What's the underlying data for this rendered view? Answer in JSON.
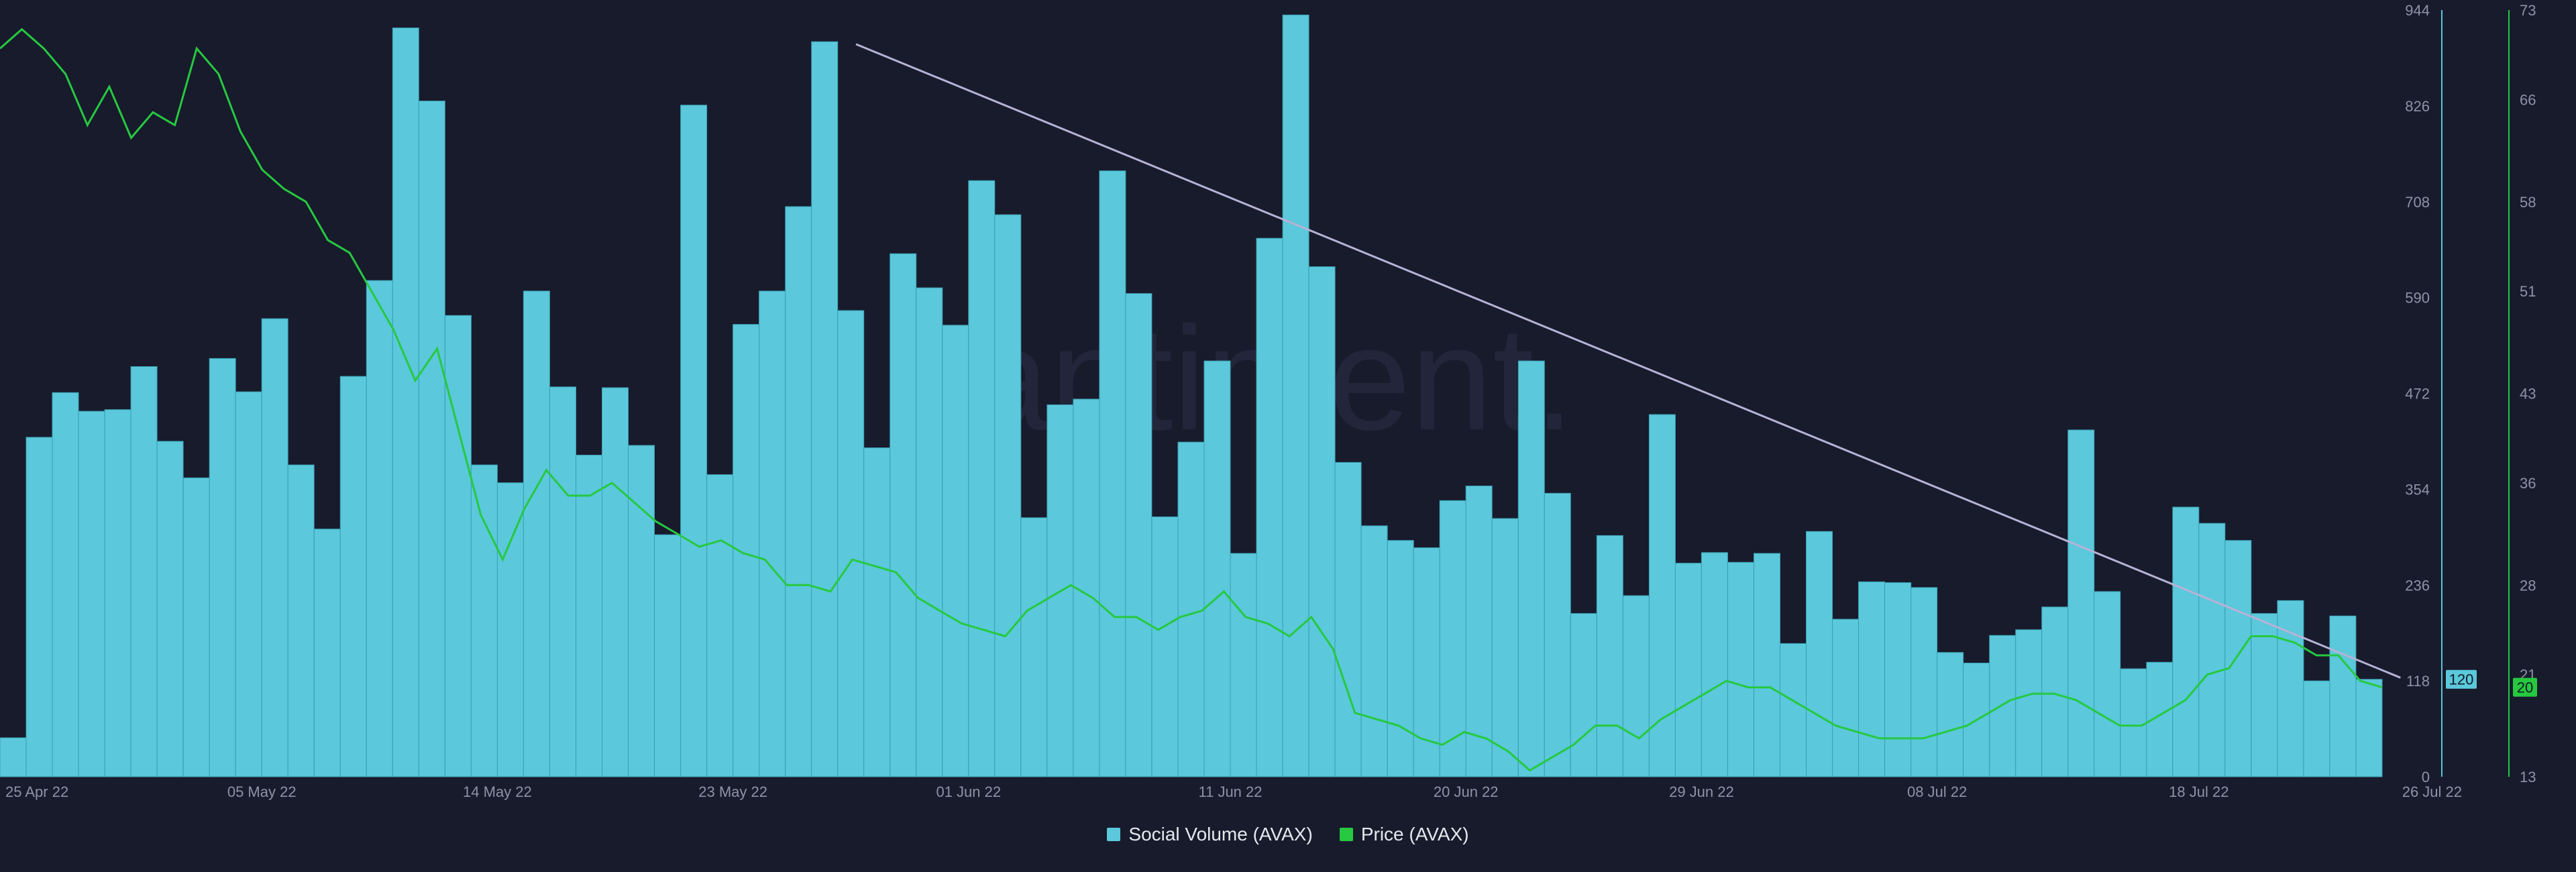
{
  "chart_data": {
    "type": "bar",
    "watermark": "santiment.",
    "x_ticks": [
      "25 Apr 22",
      "05 May 22",
      "14 May 22",
      "23 May 22",
      "01 Jun 22",
      "11 Jun 22",
      "20 Jun 22",
      "29 Jun 22",
      "08 Jul 22",
      "18 Jul 22",
      "26 Jul 22"
    ],
    "left_axis_ticks": [
      0,
      118,
      236,
      354,
      472,
      590,
      708,
      826,
      944
    ],
    "right_axis_ticks": [
      13,
      21,
      28,
      36,
      43,
      51,
      58,
      66,
      73
    ],
    "social_ylim": [
      0,
      944
    ],
    "price_ylim": [
      13,
      73
    ],
    "last_values": {
      "social": "120",
      "price": "20"
    },
    "colors": {
      "social": "#5bc8db",
      "price": "#26c940",
      "trend": "#b7b2d6",
      "background": "#181b2b",
      "axis_text": "#8f92a6"
    },
    "series": [
      {
        "name": "Social Volume (AVAX)",
        "type": "bar",
        "values": [
          48,
          418,
          473,
          450,
          452,
          505,
          413,
          368,
          515,
          474,
          564,
          384,
          305,
          493,
          611,
          922,
          832,
          568,
          384,
          362,
          598,
          480,
          396,
          479,
          408,
          298,
          827,
          372,
          557,
          598,
          702,
          905,
          574,
          405,
          644,
          602,
          556,
          734,
          692,
          319,
          458,
          465,
          746,
          595,
          320,
          412,
          512,
          275,
          663,
          938,
          628,
          387,
          309,
          291,
          282,
          340,
          358,
          318,
          512,
          349,
          201,
          297,
          223,
          446,
          263,
          276,
          264,
          275,
          164,
          302,
          194,
          240,
          239,
          233,
          153,
          140,
          174,
          181,
          209,
          427,
          228,
          133,
          141,
          332,
          312,
          291,
          201,
          217,
          118,
          198,
          120
        ],
        "bar_start_day": 0
      },
      {
        "name": "Price (AVAX)",
        "type": "line",
        "values": [
          70,
          71.5,
          70,
          68,
          64,
          67,
          63,
          65,
          64,
          70,
          68,
          63.5,
          60.5,
          59,
          58,
          55,
          54,
          51,
          48,
          44,
          46.5,
          40,
          33.5,
          30,
          34,
          37,
          35,
          35,
          36,
          34.5,
          33,
          32,
          31,
          31.5,
          30.5,
          30,
          28,
          28,
          27.5,
          30,
          29.5,
          29,
          27,
          26,
          25,
          24.5,
          24,
          26,
          27,
          28,
          27,
          25.5,
          25.5,
          24.5,
          25.5,
          26,
          27.5,
          25.5,
          25,
          24,
          25.5,
          23,
          18,
          17.5,
          17,
          16,
          15.5,
          16.5,
          16,
          15,
          13.5,
          14.5,
          15.5,
          17,
          17,
          16,
          17.5,
          18.5,
          19.5,
          20.5,
          20,
          20,
          19,
          18,
          17,
          16.5,
          16,
          16,
          16,
          16.5,
          17,
          18,
          19,
          19.5,
          19.5,
          19,
          18,
          17,
          17,
          18,
          19,
          21,
          21.5,
          24,
          24,
          23.5,
          22.5,
          22.5,
          20.5,
          20
        ]
      },
      {
        "name": "trend",
        "type": "line",
        "points": [
          [
            32.7,
            902
          ],
          [
            91.7,
            122
          ]
        ]
      }
    ],
    "legend": [
      "Social Volume (AVAX)",
      "Price (AVAX)"
    ]
  }
}
